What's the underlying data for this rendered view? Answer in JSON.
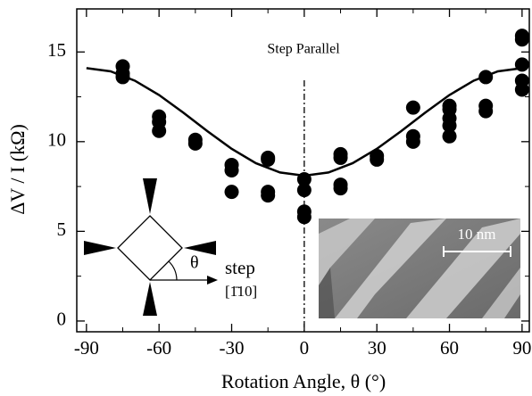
{
  "chart_data": {
    "type": "scatter",
    "x_label": "Rotation Angle, θ (°)",
    "y_label": "ΔV / I (kΩ)",
    "annotation": "Step Parallel",
    "xlim": [
      -94,
      93
    ],
    "ylim": [
      -0.6,
      17.4
    ],
    "xticks": [
      -90,
      -60,
      -30,
      0,
      30,
      60,
      90
    ],
    "yticks": [
      0,
      5,
      10,
      15
    ],
    "series": [
      {
        "type": "scatter",
        "color": "#000000",
        "x": [
          -75,
          -75,
          -75,
          -60,
          -60,
          -60,
          -45,
          -45,
          -30,
          -30,
          -30,
          -15,
          -15,
          -15,
          -15,
          0,
          0,
          0,
          0,
          15,
          15,
          15,
          15,
          30,
          30,
          45,
          45,
          45,
          60,
          60,
          60,
          60,
          60,
          75,
          75,
          75,
          90,
          90,
          90,
          90,
          90
        ],
        "values": [
          14.2,
          13.8,
          13.6,
          11.4,
          11.1,
          10.6,
          10.1,
          9.9,
          8.7,
          8.4,
          7.2,
          9.1,
          9.0,
          7.2,
          7.0,
          7.9,
          7.3,
          6.1,
          5.8,
          9.3,
          9.1,
          7.6,
          7.4,
          9.2,
          9.0,
          11.9,
          10.3,
          10.0,
          12.0,
          11.8,
          11.3,
          10.9,
          10.3,
          13.6,
          12.0,
          11.7,
          15.9,
          15.7,
          14.3,
          13.4,
          12.9
        ]
      },
      {
        "type": "line",
        "color": "#000000",
        "x": [
          -90,
          -80,
          -70,
          -60,
          -50,
          -40,
          -30,
          -20,
          -10,
          0,
          10,
          20,
          30,
          40,
          50,
          60,
          70,
          80,
          90
        ],
        "values": [
          14.1,
          13.92,
          13.4,
          12.6,
          11.62,
          10.58,
          9.6,
          8.8,
          8.28,
          8.1,
          8.28,
          8.8,
          9.6,
          10.58,
          11.62,
          12.6,
          13.4,
          13.92,
          14.1
        ]
      }
    ],
    "inset": {
      "angle_label": "θ",
      "direction_label": "step",
      "direction_index": "[1̄10]",
      "scale_bar": "10 nm"
    }
  }
}
